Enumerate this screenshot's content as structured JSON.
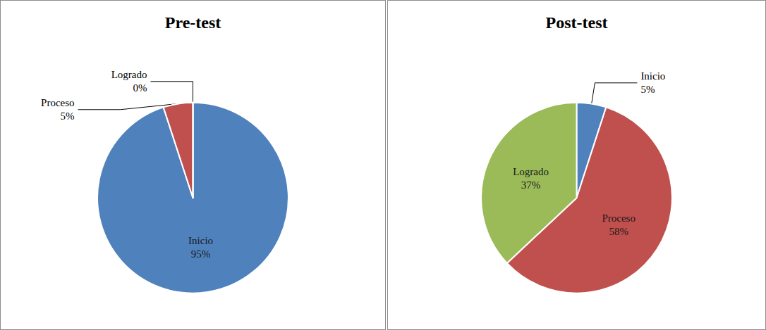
{
  "chart_data": [
    {
      "type": "pie",
      "title": "Pre-test",
      "categories": [
        "Inicio",
        "Proceso",
        "Logrado"
      ],
      "values": [
        95,
        5,
        0
      ],
      "value_labels": [
        "95%",
        "5%",
        "0%"
      ],
      "colors": [
        "#4f81bd",
        "#c0504d",
        "#9bbb59"
      ],
      "data_labels": true
    },
    {
      "type": "pie",
      "title": "Post-test",
      "categories": [
        "Inicio",
        "Proceso",
        "Logrado"
      ],
      "values": [
        5,
        58,
        37
      ],
      "value_labels": [
        "5%",
        "58%",
        "37%"
      ],
      "colors": [
        "#4f81bd",
        "#c0504d",
        "#9bbb59"
      ],
      "data_labels": true
    }
  ]
}
